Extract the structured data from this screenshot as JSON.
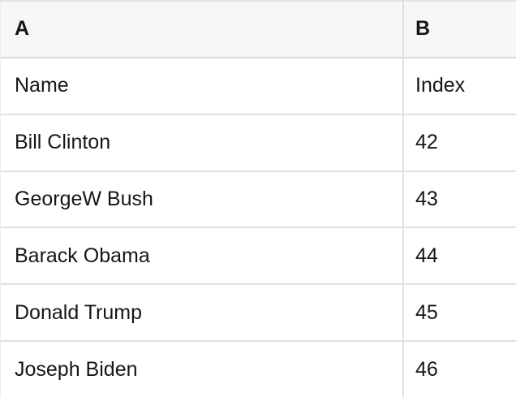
{
  "table": {
    "column_headers": [
      "A",
      "B"
    ],
    "rows": [
      [
        "Name",
        "Index"
      ],
      [
        "Bill Clinton",
        "42"
      ],
      [
        "GeorgeW Bush",
        "43"
      ],
      [
        "Barack Obama",
        "44"
      ],
      [
        "Donald Trump",
        "45"
      ],
      [
        "Joseph Biden",
        "46"
      ]
    ]
  },
  "colors": {
    "header_background": "#f7f7f7",
    "row_background": "#ffffff",
    "border": "#e0e0e0",
    "header_border_bottom": "#d9d9d9",
    "top_border": "#e3e3e3",
    "left_border": "#eeeeee",
    "text": "#161616"
  }
}
